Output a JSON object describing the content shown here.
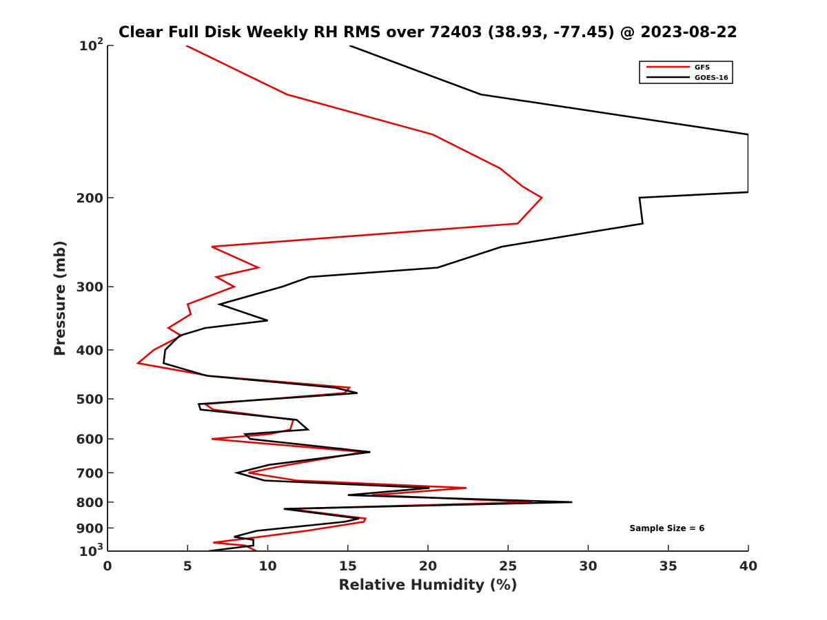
{
  "chart_data": {
    "type": "line",
    "title": "Clear Full Disk Weekly RH RMS over 72403 (38.93, -77.45) @ 2023-08-22",
    "xlabel": "Relative Humidity (%)",
    "ylabel": "Pressure (mb)",
    "xlim": [
      0,
      40
    ],
    "ylim": [
      100,
      1000
    ],
    "y_scale": "log",
    "y_reversed": true,
    "grid": false,
    "legend_position": "top-right",
    "x_ticks": [
      0,
      5,
      10,
      15,
      20,
      25,
      30,
      35,
      40
    ],
    "y_ticks": [
      100,
      200,
      300,
      400,
      500,
      600,
      700,
      800,
      900,
      1000
    ],
    "x_tick_labels": [
      "0",
      "5",
      "10",
      "15",
      "20",
      "25",
      "30",
      "35",
      "40"
    ],
    "y_tick_labels": [
      {
        "base": "10",
        "exp": "2"
      },
      {
        "base": "200",
        "exp": ""
      },
      {
        "base": "300",
        "exp": ""
      },
      {
        "base": "400",
        "exp": ""
      },
      {
        "base": "500",
        "exp": ""
      },
      {
        "base": "600",
        "exp": ""
      },
      {
        "base": "700",
        "exp": ""
      },
      {
        "base": "800",
        "exp": ""
      },
      {
        "base": "900",
        "exp": ""
      },
      {
        "base": "10",
        "exp": "3"
      }
    ],
    "annotation": "Sample Size = 6",
    "series": [
      {
        "name": "GFS",
        "color": "#e60000",
        "points": [
          [
            4.9,
            100
          ],
          [
            11.2,
            125
          ],
          [
            20.3,
            150
          ],
          [
            24.5,
            175
          ],
          [
            25.9,
            190
          ],
          [
            27.1,
            200
          ],
          [
            25.6,
            225
          ],
          [
            6.5,
            250
          ],
          [
            9.4,
            275
          ],
          [
            6.8,
            287
          ],
          [
            7.9,
            300
          ],
          [
            5.0,
            325
          ],
          [
            5.2,
            340
          ],
          [
            3.8,
            362
          ],
          [
            4.6,
            375
          ],
          [
            2.9,
            400
          ],
          [
            1.9,
            425
          ],
          [
            6.3,
            450
          ],
          [
            15.1,
            475
          ],
          [
            14.8,
            487
          ],
          [
            6.1,
            512
          ],
          [
            6.6,
            525
          ],
          [
            11.6,
            550
          ],
          [
            11.4,
            575
          ],
          [
            10.1,
            587
          ],
          [
            6.5,
            600
          ],
          [
            16.0,
            637
          ],
          [
            11.3,
            675
          ],
          [
            8.8,
            700
          ],
          [
            11.8,
            725
          ],
          [
            22.4,
            750
          ],
          [
            16.5,
            775
          ],
          [
            26.5,
            800
          ],
          [
            11.3,
            825
          ],
          [
            16.1,
            862
          ],
          [
            16.0,
            875
          ],
          [
            12.4,
            912
          ],
          [
            9.5,
            937
          ],
          [
            6.6,
            962
          ],
          [
            8.6,
            975
          ],
          [
            9.3,
            1000
          ]
        ]
      },
      {
        "name": "GOES-16",
        "color": "#000000",
        "points": [
          [
            15.1,
            100
          ],
          [
            23.3,
            125
          ],
          [
            40.0,
            150
          ],
          [
            40.0,
            195
          ],
          [
            33.2,
            200
          ],
          [
            33.4,
            225
          ],
          [
            24.6,
            250
          ],
          [
            20.6,
            275
          ],
          [
            12.6,
            287
          ],
          [
            10.9,
            300
          ],
          [
            7.0,
            325
          ],
          [
            10.0,
            350
          ],
          [
            6.1,
            362
          ],
          [
            4.5,
            375
          ],
          [
            3.6,
            400
          ],
          [
            3.5,
            425
          ],
          [
            6.2,
            450
          ],
          [
            14.2,
            475
          ],
          [
            15.6,
            487
          ],
          [
            5.7,
            512
          ],
          [
            5.8,
            525
          ],
          [
            11.8,
            550
          ],
          [
            12.5,
            575
          ],
          [
            8.6,
            587
          ],
          [
            8.9,
            600
          ],
          [
            16.4,
            637
          ],
          [
            10.1,
            675
          ],
          [
            8.1,
            700
          ],
          [
            9.8,
            725
          ],
          [
            20.1,
            750
          ],
          [
            15.0,
            775
          ],
          [
            29.0,
            800
          ],
          [
            11.0,
            825
          ],
          [
            15.7,
            862
          ],
          [
            14.8,
            875
          ],
          [
            9.3,
            912
          ],
          [
            7.9,
            937
          ],
          [
            9.1,
            950
          ],
          [
            9.1,
            975
          ],
          [
            6.3,
            1000
          ]
        ]
      }
    ]
  }
}
